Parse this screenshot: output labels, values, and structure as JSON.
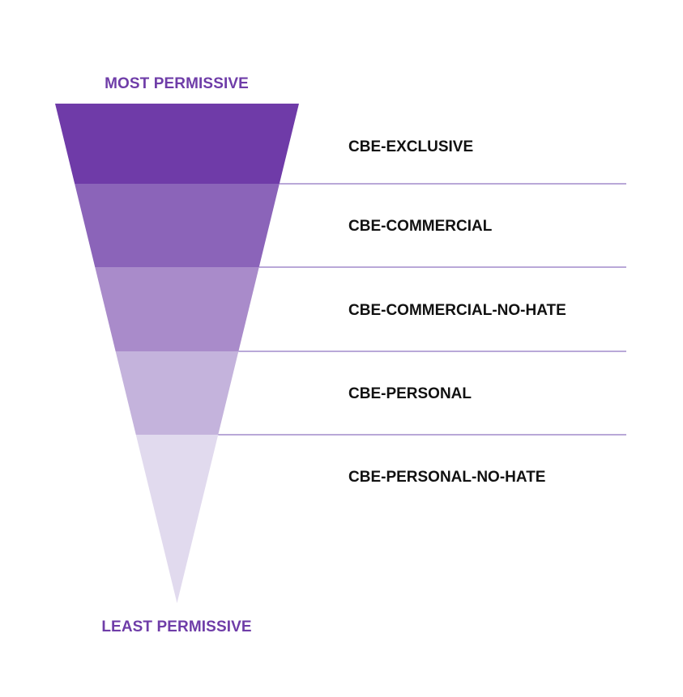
{
  "top_label": "MOST PERMISSIVE",
  "bottom_label": "LEAST PERMISSIVE",
  "accent_color": "#6f3da8",
  "divider_color": "#8f75c0",
  "text_color": "#111111",
  "tiers": [
    {
      "label": "CBE-EXCLUSIVE",
      "color": "#6f3ba8"
    },
    {
      "label": "CBE-COMMERCIAL",
      "color": "#8b64b9"
    },
    {
      "label": "CBE-COMMERCIAL-NO-HATE",
      "color": "#a98bca"
    },
    {
      "label": "CBE-PERSONAL",
      "color": "#c4b3dc"
    },
    {
      "label": "CBE-PERSONAL-NO-HATE",
      "color": "#e1daee"
    }
  ]
}
